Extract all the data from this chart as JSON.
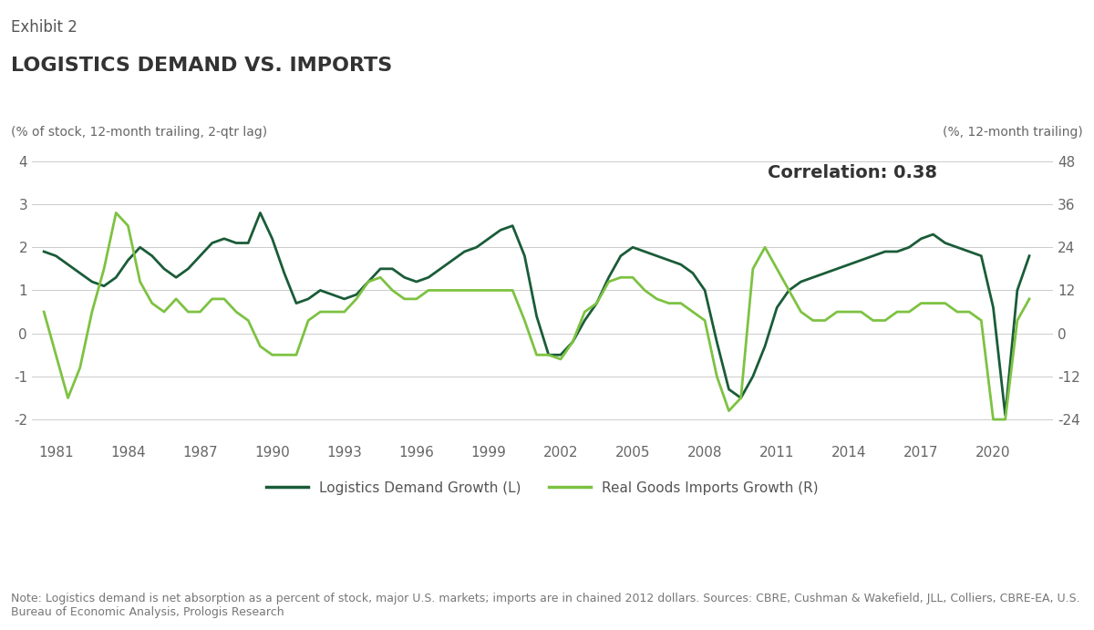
{
  "exhibit_label": "Exhibit 2",
  "title": "LOGISTICS DEMAND VS. IMPORTS",
  "left_axis_label": "(% of stock, 12-month trailing, 2-qtr lag)",
  "right_axis_label": "(%, 12-month trailing)",
  "correlation_text": "Correlation: 0.38",
  "note": "Note: Logistics demand is net absorption as a percent of stock, major U.S. markets; imports are in chained 2012 dollars. Sources: CBRE, Cushman & Wakefield, JLL, Colliers, CBRE-EA, U.S. Bureau of Economic Analysis, Prologis Research",
  "legend_left": "Logistics Demand Growth (L)",
  "legend_right": "Real Goods Imports Growth (R)",
  "color_dark_green": "#1a5c38",
  "color_light_green": "#7dc242",
  "left_ylim": [
    -2.5,
    4.5
  ],
  "right_ylim": [
    -30,
    54
  ],
  "left_yticks": [
    -2,
    -1,
    0,
    1,
    2,
    3,
    4
  ],
  "right_yticks": [
    -24,
    -12,
    0,
    12,
    24,
    36,
    48
  ],
  "xticks": [
    1981,
    1984,
    1987,
    1990,
    1993,
    1996,
    1999,
    2002,
    2005,
    2008,
    2011,
    2014,
    2017,
    2020
  ],
  "logistics_years": [
    1980.5,
    1981,
    1981.5,
    1982,
    1982.5,
    1983,
    1983.5,
    1984,
    1984.5,
    1985,
    1985.5,
    1986,
    1986.5,
    1987,
    1987.5,
    1988,
    1988.5,
    1989,
    1989.5,
    1990,
    1990.5,
    1991,
    1991.5,
    1992,
    1992.5,
    1993,
    1993.5,
    1994,
    1994.5,
    1995,
    1995.5,
    1996,
    1996.5,
    1997,
    1997.5,
    1998,
    1998.5,
    1999,
    1999.5,
    2000,
    2000.5,
    2001,
    2001.5,
    2002,
    2002.5,
    2003,
    2003.5,
    2004,
    2004.5,
    2005,
    2005.5,
    2006,
    2006.5,
    2007,
    2007.5,
    2008,
    2008.5,
    2009,
    2009.5,
    2010,
    2010.5,
    2011,
    2011.5,
    2012,
    2012.5,
    2013,
    2013.5,
    2014,
    2014.5,
    2015,
    2015.5,
    2016,
    2016.5,
    2017,
    2017.5,
    2018,
    2018.5,
    2019,
    2019.5,
    2020,
    2020.5,
    2021,
    2021.5
  ],
  "logistics_values": [
    1.9,
    1.8,
    1.6,
    1.4,
    1.2,
    1.1,
    1.3,
    1.7,
    2.0,
    1.8,
    1.5,
    1.3,
    1.5,
    1.8,
    2.1,
    2.2,
    2.1,
    2.1,
    2.8,
    2.2,
    1.4,
    0.7,
    0.8,
    1.0,
    0.9,
    0.8,
    0.9,
    1.2,
    1.5,
    1.5,
    1.3,
    1.2,
    1.3,
    1.5,
    1.7,
    1.9,
    2.0,
    2.2,
    2.4,
    2.5,
    1.8,
    0.4,
    -0.5,
    -0.5,
    -0.2,
    0.3,
    0.7,
    1.3,
    1.8,
    2.0,
    1.9,
    1.8,
    1.7,
    1.6,
    1.4,
    1.0,
    -0.2,
    -1.3,
    -1.5,
    -1.0,
    -0.3,
    0.6,
    1.0,
    1.2,
    1.3,
    1.4,
    1.5,
    1.6,
    1.7,
    1.8,
    1.9,
    1.9,
    2.0,
    2.2,
    2.3,
    2.1,
    2.0,
    1.9,
    1.8,
    0.6,
    -1.9,
    1.0,
    1.8
  ],
  "imports_years": [
    1980.5,
    1981,
    1981.5,
    1982,
    1982.5,
    1983,
    1983.5,
    1984,
    1984.5,
    1985,
    1985.5,
    1986,
    1986.5,
    1987,
    1987.5,
    1988,
    1988.5,
    1989,
    1989.5,
    1990,
    1990.5,
    1991,
    1991.5,
    1992,
    1992.5,
    1993,
    1993.5,
    1994,
    1994.5,
    1995,
    1995.5,
    1996,
    1996.5,
    1997,
    1997.5,
    1998,
    1998.5,
    1999,
    1999.5,
    2000,
    2000.5,
    2001,
    2001.5,
    2002,
    2002.5,
    2003,
    2003.5,
    2004,
    2004.5,
    2005,
    2005.5,
    2006,
    2006.5,
    2007,
    2007.5,
    2008,
    2008.5,
    2009,
    2009.5,
    2010,
    2010.5,
    2011,
    2011.5,
    2012,
    2012.5,
    2013,
    2013.5,
    2014,
    2014.5,
    2015,
    2015.5,
    2016,
    2016.5,
    2017,
    2017.5,
    2018,
    2018.5,
    2019,
    2019.5,
    2020,
    2020.5,
    2021,
    2021.5
  ],
  "imports_values": [
    0.5,
    -0.5,
    -1.5,
    -0.8,
    0.5,
    1.5,
    2.8,
    2.5,
    1.2,
    0.7,
    0.5,
    0.8,
    0.5,
    0.5,
    0.8,
    0.8,
    0.5,
    0.3,
    -0.3,
    -0.5,
    -0.5,
    -0.5,
    0.3,
    0.5,
    0.5,
    0.5,
    0.8,
    1.2,
    1.3,
    1.0,
    0.8,
    0.8,
    1.0,
    1.0,
    1.0,
    1.0,
    1.0,
    1.0,
    1.0,
    1.0,
    0.3,
    -0.5,
    -0.5,
    -0.6,
    -0.2,
    0.5,
    0.7,
    1.2,
    1.3,
    1.3,
    1.0,
    0.8,
    0.7,
    0.7,
    0.5,
    0.3,
    -1.0,
    -1.8,
    -1.5,
    1.5,
    2.0,
    1.5,
    1.0,
    0.5,
    0.3,
    0.3,
    0.5,
    0.5,
    0.5,
    0.3,
    0.3,
    0.5,
    0.5,
    0.7,
    0.7,
    0.7,
    0.5,
    0.5,
    0.3,
    -2.0,
    -2.0,
    0.3,
    0.8
  ]
}
